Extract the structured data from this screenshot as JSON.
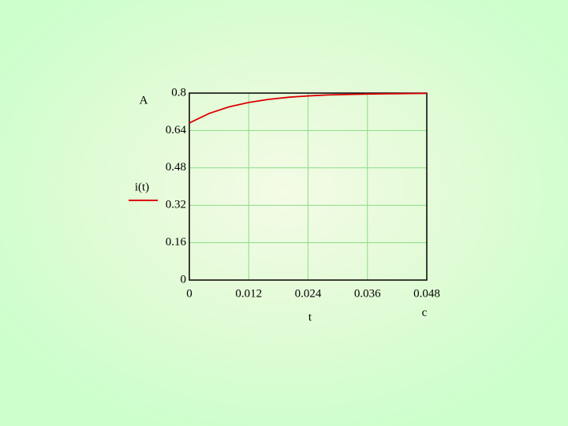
{
  "chart_data": {
    "type": "line",
    "x": [
      0,
      0.004,
      0.008,
      0.012,
      0.016,
      0.02,
      0.024,
      0.028,
      0.032,
      0.036,
      0.04,
      0.044,
      0.048
    ],
    "values": [
      0.672,
      0.713,
      0.741,
      0.76,
      0.773,
      0.782,
      0.788,
      0.792,
      0.794,
      0.796,
      0.797,
      0.798,
      0.799
    ],
    "color": "#dd0000",
    "ylabel": "i(t)",
    "xlabel": "t",
    "y_unit": "A",
    "x_unit": "c",
    "xlim": [
      0,
      0.048
    ],
    "ylim": [
      0,
      0.8
    ],
    "xticks": [
      0,
      0.012,
      0.024,
      0.036,
      0.048
    ],
    "yticks": [
      0,
      0.16,
      0.32,
      0.48,
      0.64,
      0.8
    ],
    "grid": true
  }
}
